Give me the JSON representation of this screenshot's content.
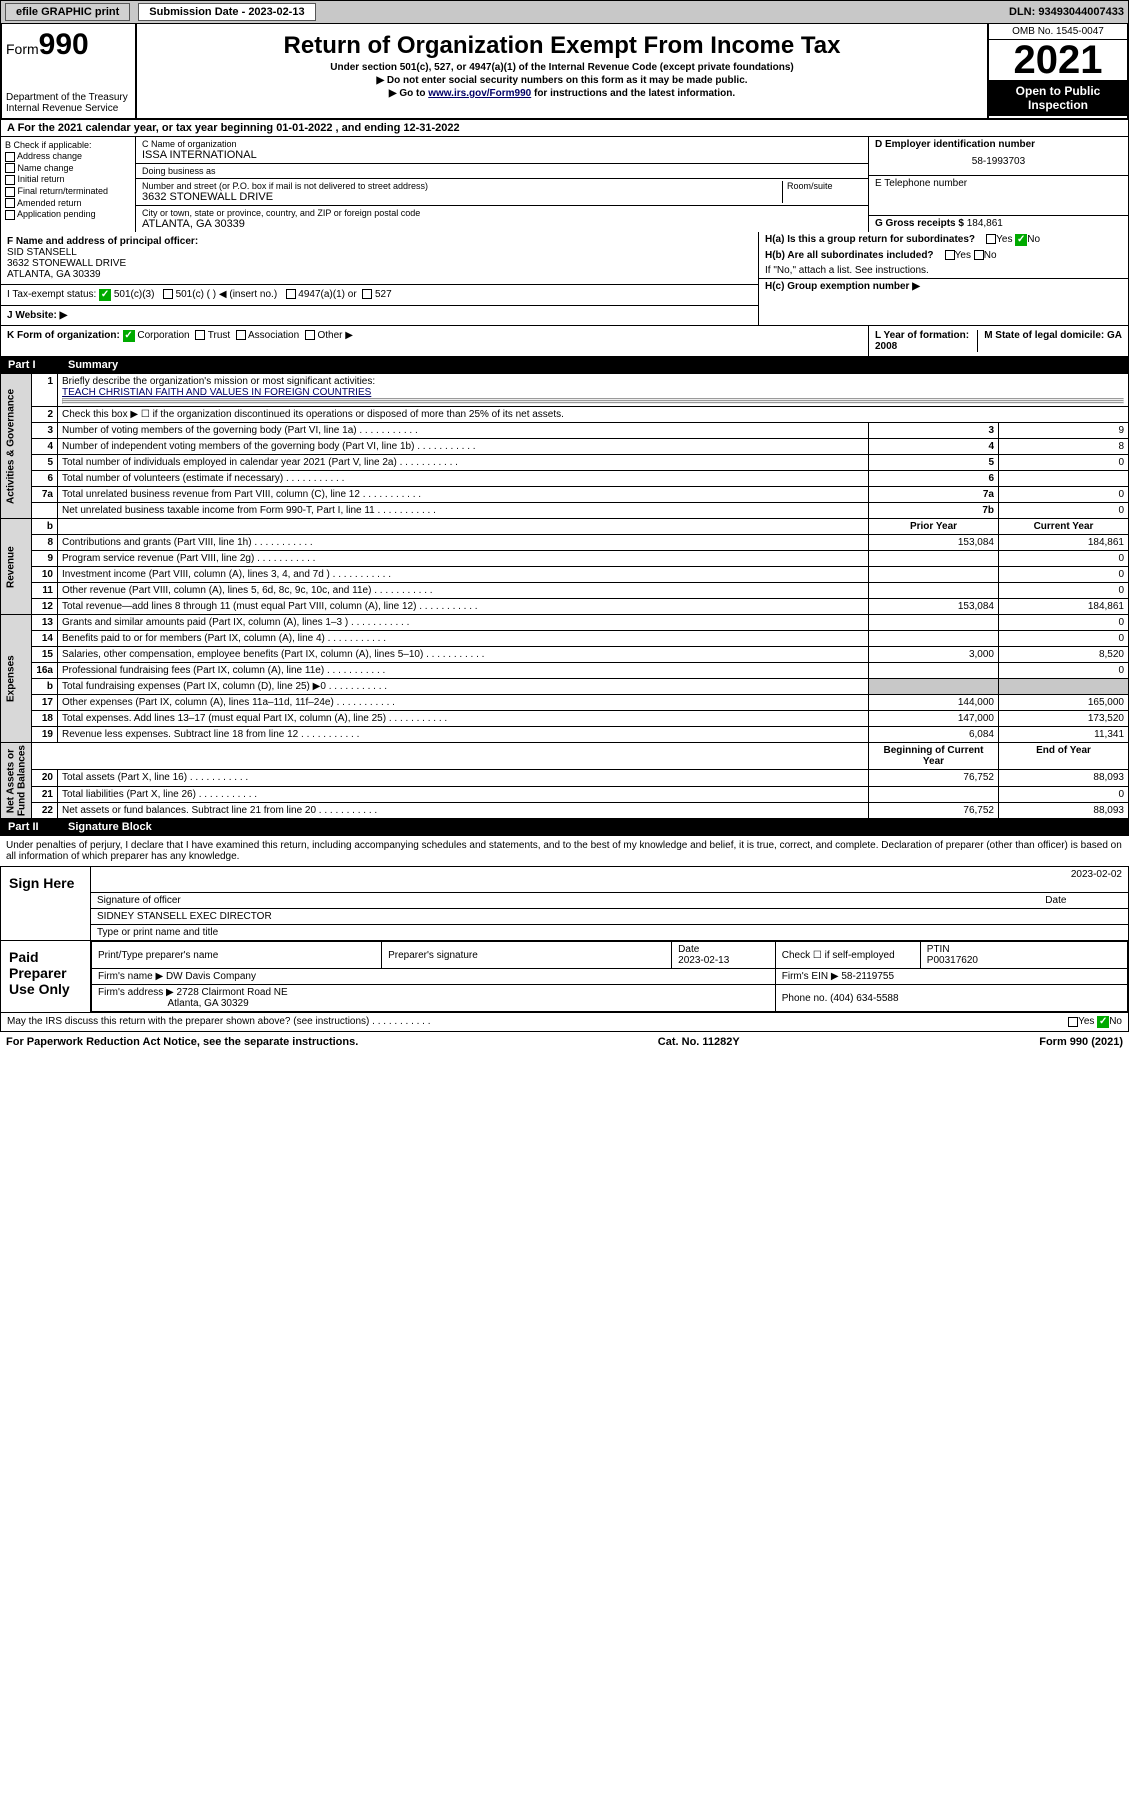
{
  "topbar": {
    "efile": "efile GRAPHIC print",
    "subdate_label": "Submission Date - 2023-02-13",
    "dln": "DLN: 93493044007433"
  },
  "header": {
    "form_prefix": "Form",
    "form_num": "990",
    "dept": "Department of the Treasury\nInternal Revenue Service",
    "title": "Return of Organization Exempt From Income Tax",
    "sub1": "Under section 501(c), 527, or 4947(a)(1) of the Internal Revenue Code (except private foundations)",
    "sub2": "▶ Do not enter social security numbers on this form as it may be made public.",
    "sub3_pre": "▶ Go to ",
    "sub3_link": "www.irs.gov/Form990",
    "sub3_post": " for instructions and the latest information.",
    "omb": "OMB No. 1545-0047",
    "year": "2021",
    "open": "Open to Public Inspection"
  },
  "sectionA": "A For the 2021 calendar year, or tax year beginning 01-01-2022   , and ending 12-31-2022",
  "colB": {
    "hdr": "B Check if applicable:",
    "opts": [
      "Address change",
      "Name change",
      "Initial return",
      "Final return/terminated",
      "Amended return",
      "Application pending"
    ]
  },
  "colC": {
    "name_label": "C Name of organization",
    "name": "ISSA INTERNATIONAL",
    "dba_label": "Doing business as",
    "addr_label": "Number and street (or P.O. box if mail is not delivered to street address)",
    "room_label": "Room/suite",
    "addr": "3632 STONEWALL DRIVE",
    "city_label": "City or town, state or province, country, and ZIP or foreign postal code",
    "city": "ATLANTA, GA  30339"
  },
  "colD": {
    "ein_label": "D Employer identification number",
    "ein": "58-1993703",
    "tel_label": "E Telephone number",
    "gross_label": "G Gross receipts $",
    "gross": "184,861"
  },
  "rowF": {
    "label": "F  Name and address of principal officer:",
    "name": "SID STANSELL",
    "addr1": "3632 STONEWALL DRIVE",
    "addr2": "ATLANTA, GA  30339"
  },
  "rowH": {
    "ha": "H(a)  Is this a group return for subordinates?",
    "hb": "H(b)  Are all subordinates included?",
    "hb_note": "If \"No,\" attach a list. See instructions.",
    "hc": "H(c)  Group exemption number ▶",
    "yes": "Yes",
    "no": "No"
  },
  "rowI": {
    "label": "I   Tax-exempt status:",
    "o1": "501(c)(3)",
    "o2": "501(c) (  ) ◀ (insert no.)",
    "o3": "4947(a)(1) or",
    "o4": "527"
  },
  "rowJ": {
    "label": "J   Website: ▶"
  },
  "rowK": {
    "label": "K Form of organization:",
    "o1": "Corporation",
    "o2": "Trust",
    "o3": "Association",
    "o4": "Other ▶"
  },
  "rowL": {
    "label": "L Year of formation: 2008"
  },
  "rowM": {
    "label": "M State of legal domicile: GA"
  },
  "part1": {
    "num": "Part I",
    "title": "Summary"
  },
  "sidelabels": {
    "ag": "Activities & Governance",
    "rev": "Revenue",
    "exp": "Expenses",
    "na": "Net Assets or\nFund Balances"
  },
  "summary": {
    "l1": "Briefly describe the organization's mission or most significant activities:",
    "l1_val": "TEACH CHRISTIAN FAITH AND VALUES IN FOREIGN COUNTRIES",
    "l2": "Check this box ▶ ☐ if the organization discontinued its operations or disposed of more than 25% of its net assets.",
    "rows_ag": [
      {
        "n": "3",
        "t": "Number of voting members of the governing body (Part VI, line 1a)",
        "b": "3",
        "v": "9"
      },
      {
        "n": "4",
        "t": "Number of independent voting members of the governing body (Part VI, line 1b)",
        "b": "4",
        "v": "8"
      },
      {
        "n": "5",
        "t": "Total number of individuals employed in calendar year 2021 (Part V, line 2a)",
        "b": "5",
        "v": "0"
      },
      {
        "n": "6",
        "t": "Total number of volunteers (estimate if necessary)",
        "b": "6",
        "v": ""
      },
      {
        "n": "7a",
        "t": "Total unrelated business revenue from Part VIII, column (C), line 12",
        "b": "7a",
        "v": "0"
      },
      {
        "n": "",
        "t": "Net unrelated business taxable income from Form 990-T, Part I, line 11",
        "b": "7b",
        "v": "0"
      }
    ],
    "col_headers": {
      "b": "b",
      "py": "Prior Year",
      "cy": "Current Year"
    },
    "rows_rev": [
      {
        "n": "8",
        "t": "Contributions and grants (Part VIII, line 1h)",
        "py": "153,084",
        "cy": "184,861"
      },
      {
        "n": "9",
        "t": "Program service revenue (Part VIII, line 2g)",
        "py": "",
        "cy": "0"
      },
      {
        "n": "10",
        "t": "Investment income (Part VIII, column (A), lines 3, 4, and 7d )",
        "py": "",
        "cy": "0"
      },
      {
        "n": "11",
        "t": "Other revenue (Part VIII, column (A), lines 5, 6d, 8c, 9c, 10c, and 11e)",
        "py": "",
        "cy": "0"
      },
      {
        "n": "12",
        "t": "Total revenue—add lines 8 through 11 (must equal Part VIII, column (A), line 12)",
        "py": "153,084",
        "cy": "184,861"
      }
    ],
    "rows_exp": [
      {
        "n": "13",
        "t": "Grants and similar amounts paid (Part IX, column (A), lines 1–3 )",
        "py": "",
        "cy": "0"
      },
      {
        "n": "14",
        "t": "Benefits paid to or for members (Part IX, column (A), line 4)",
        "py": "",
        "cy": "0"
      },
      {
        "n": "15",
        "t": "Salaries, other compensation, employee benefits (Part IX, column (A), lines 5–10)",
        "py": "3,000",
        "cy": "8,520"
      },
      {
        "n": "16a",
        "t": "Professional fundraising fees (Part IX, column (A), line 11e)",
        "py": "",
        "cy": "0"
      },
      {
        "n": "b",
        "t": "Total fundraising expenses (Part IX, column (D), line 25) ▶0",
        "py": "GRAY",
        "cy": "GRAY"
      },
      {
        "n": "17",
        "t": "Other expenses (Part IX, column (A), lines 11a–11d, 11f–24e)",
        "py": "144,000",
        "cy": "165,000"
      },
      {
        "n": "18",
        "t": "Total expenses. Add lines 13–17 (must equal Part IX, column (A), line 25)",
        "py": "147,000",
        "cy": "173,520"
      },
      {
        "n": "19",
        "t": "Revenue less expenses. Subtract line 18 from line 12",
        "py": "6,084",
        "cy": "11,341"
      }
    ],
    "col_headers2": {
      "py": "Beginning of Current Year",
      "cy": "End of Year"
    },
    "rows_na": [
      {
        "n": "20",
        "t": "Total assets (Part X, line 16)",
        "py": "76,752",
        "cy": "88,093"
      },
      {
        "n": "21",
        "t": "Total liabilities (Part X, line 26)",
        "py": "",
        "cy": "0"
      },
      {
        "n": "22",
        "t": "Net assets or fund balances. Subtract line 21 from line 20",
        "py": "76,752",
        "cy": "88,093"
      }
    ]
  },
  "part2": {
    "num": "Part II",
    "title": "Signature Block"
  },
  "decl": "Under penalties of perjury, I declare that I have examined this return, including accompanying schedules and statements, and to the best of my knowledge and belief, it is true, correct, and complete. Declaration of preparer (other than officer) is based on all information of which preparer has any knowledge.",
  "sign": {
    "here": "Sign Here",
    "sig_label": "Signature of officer",
    "date_label": "Date",
    "date": "2023-02-02",
    "name": "SIDNEY STANSELL  EXEC DIRECTOR",
    "name_label": "Type or print name and title"
  },
  "prep": {
    "here": "Paid Preparer Use Only",
    "h1": "Print/Type preparer's name",
    "h2": "Preparer's signature",
    "h3": "Date",
    "h3v": "2023-02-13",
    "h4": "Check ☐ if self-employed",
    "h5": "PTIN",
    "h5v": "P00317620",
    "firm_label": "Firm's name    ▶",
    "firm": "DW Davis Company",
    "ein_label": "Firm's EIN ▶",
    "ein": "58-2119755",
    "addr_label": "Firm's address ▶",
    "addr1": "2728 Clairmont Road NE",
    "addr2": "Atlanta, GA  30329",
    "phone_label": "Phone no.",
    "phone": "(404) 634-5588"
  },
  "may": "May the IRS discuss this return with the preparer shown above? (see instructions)",
  "footer": {
    "l": "For Paperwork Reduction Act Notice, see the separate instructions.",
    "m": "Cat. No. 11282Y",
    "r": "Form 990 (2021)"
  }
}
